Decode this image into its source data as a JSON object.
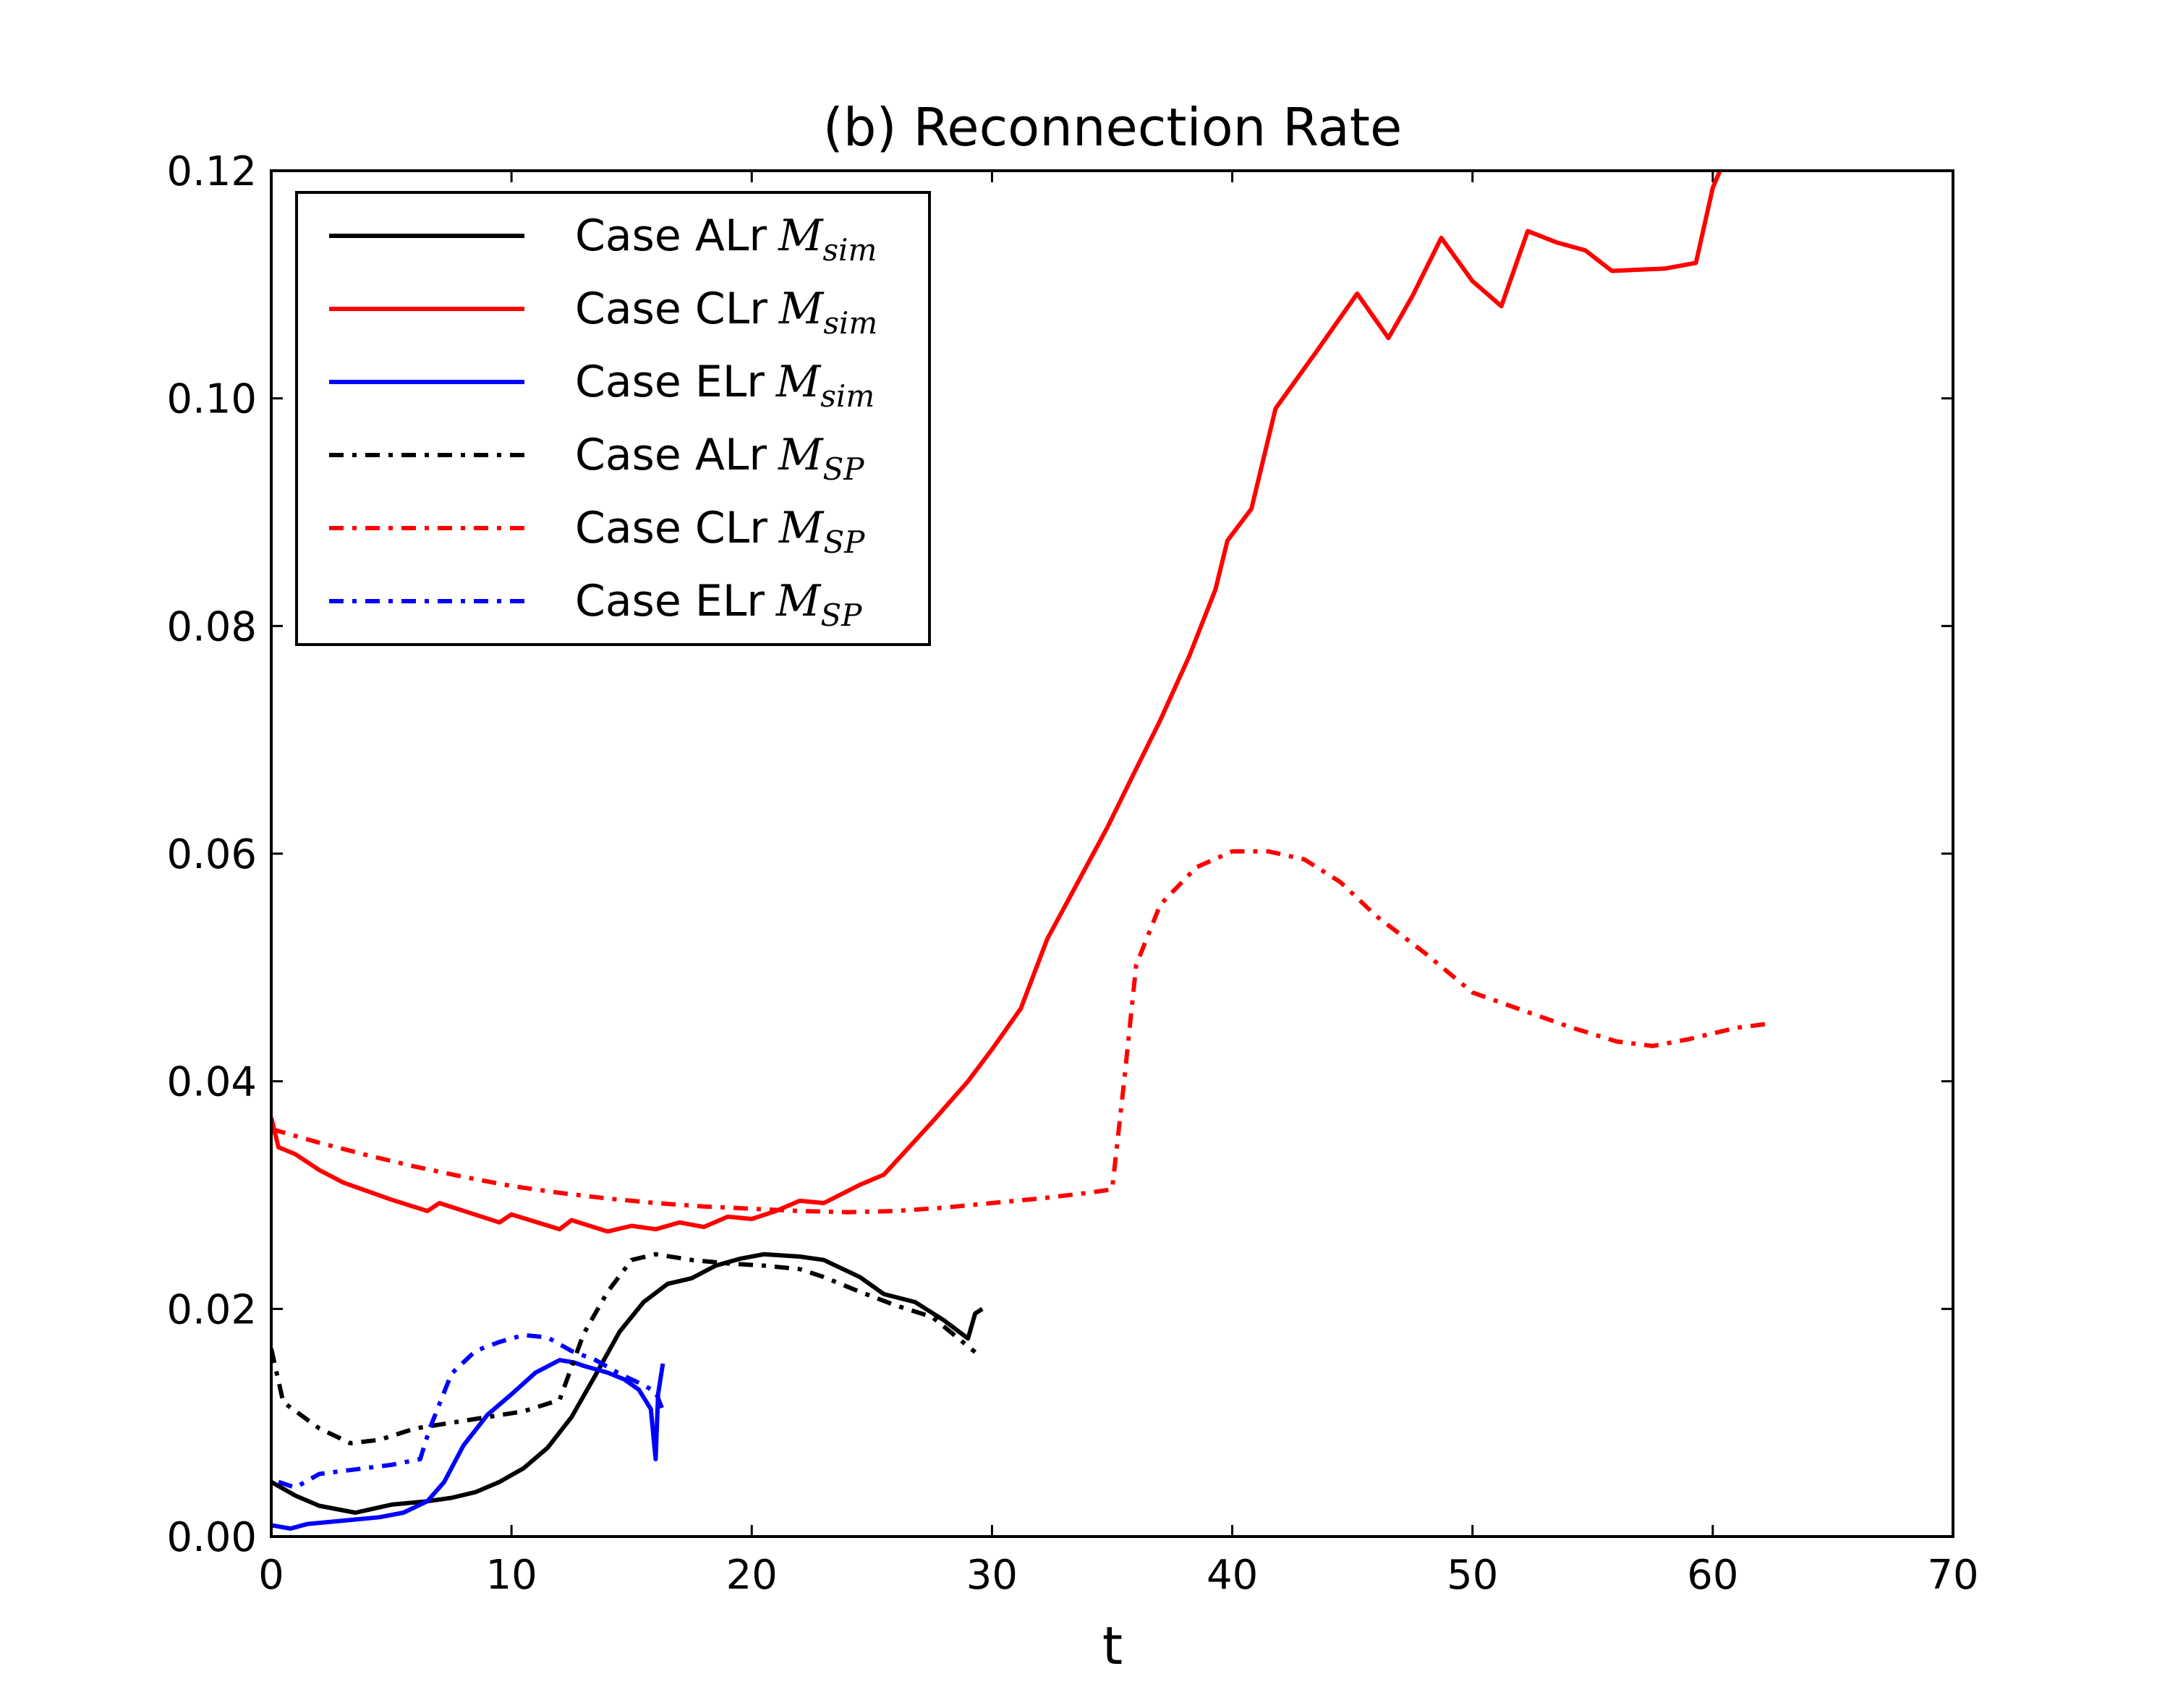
{
  "chart_data": {
    "type": "line",
    "title": "(b) Reconnection Rate",
    "xlabel": "t",
    "ylabel": "",
    "xlim": [
      0,
      70
    ],
    "ylim": [
      0,
      0.12
    ],
    "xticks": [
      "0",
      "10",
      "20",
      "30",
      "40",
      "50",
      "60",
      "70"
    ],
    "yticks": [
      "0.00",
      "0.02",
      "0.04",
      "0.06",
      "0.08",
      "0.10",
      "0.12"
    ],
    "legend_position": "top-left",
    "series": [
      {
        "name": "Case ALr M_sim",
        "label": "Case ALr",
        "math": "M",
        "sub": "sim",
        "color": "#000000",
        "style": "solid",
        "points": [
          [
            0,
            0.0048
          ],
          [
            0.5,
            0.0042
          ],
          [
            1,
            0.0036
          ],
          [
            2,
            0.0027
          ],
          [
            3.5,
            0.0021
          ],
          [
            5,
            0.0028
          ],
          [
            6.5,
            0.0031
          ],
          [
            7.5,
            0.0034
          ],
          [
            8.5,
            0.0039
          ],
          [
            9.5,
            0.0048
          ],
          [
            10.5,
            0.006
          ],
          [
            11.5,
            0.0078
          ],
          [
            12.5,
            0.0105
          ],
          [
            13.5,
            0.0142
          ],
          [
            14.5,
            0.018
          ],
          [
            15.5,
            0.0206
          ],
          [
            16.5,
            0.0222
          ],
          [
            17.5,
            0.0227
          ],
          [
            18.5,
            0.0238
          ],
          [
            19.5,
            0.0244
          ],
          [
            20.5,
            0.0248
          ],
          [
            22,
            0.0246
          ],
          [
            23,
            0.0243
          ],
          [
            24.5,
            0.0228
          ],
          [
            25.5,
            0.0213
          ],
          [
            26.8,
            0.0206
          ],
          [
            28,
            0.019
          ],
          [
            29,
            0.0174
          ],
          [
            29.3,
            0.0196
          ],
          [
            29.6,
            0.02
          ]
        ]
      },
      {
        "name": "Case CLr M_sim",
        "label": "Case CLr",
        "math": "M",
        "sub": "sim",
        "color": "#ff0000",
        "style": "solid",
        "points": [
          [
            0,
            0.0368
          ],
          [
            0.3,
            0.0342
          ],
          [
            1,
            0.0336
          ],
          [
            2,
            0.0322
          ],
          [
            3,
            0.0311
          ],
          [
            5,
            0.0296
          ],
          [
            6.5,
            0.0286
          ],
          [
            7,
            0.0293
          ],
          [
            9.5,
            0.0276
          ],
          [
            10,
            0.0283
          ],
          [
            12,
            0.027
          ],
          [
            12.5,
            0.0278
          ],
          [
            14,
            0.0268
          ],
          [
            15,
            0.0273
          ],
          [
            16,
            0.027
          ],
          [
            17,
            0.0276
          ],
          [
            18,
            0.0272
          ],
          [
            19,
            0.0281
          ],
          [
            20,
            0.0279
          ],
          [
            21,
            0.0286
          ],
          [
            22,
            0.0295
          ],
          [
            23,
            0.0293
          ],
          [
            24.5,
            0.0309
          ],
          [
            25.5,
            0.0318
          ],
          [
            26.5,
            0.0341
          ],
          [
            27.5,
            0.0364
          ],
          [
            29,
            0.04
          ],
          [
            30,
            0.0428
          ],
          [
            31.2,
            0.0464
          ],
          [
            32.3,
            0.0525
          ],
          [
            33.5,
            0.0572
          ],
          [
            34.8,
            0.0623
          ],
          [
            35.8,
            0.0666
          ],
          [
            37,
            0.0717
          ],
          [
            38.2,
            0.0773
          ],
          [
            39.3,
            0.0832
          ],
          [
            39.8,
            0.0875
          ],
          [
            40.8,
            0.0903
          ],
          [
            41.8,
            0.0991
          ],
          [
            43.5,
            0.1041
          ],
          [
            45.2,
            0.1092
          ],
          [
            46.5,
            0.1053
          ],
          [
            47.5,
            0.109
          ],
          [
            48.7,
            0.1141
          ],
          [
            50,
            0.1103
          ],
          [
            51.2,
            0.1081
          ],
          [
            52.3,
            0.1147
          ],
          [
            53.5,
            0.1137
          ],
          [
            54.7,
            0.113
          ],
          [
            55.8,
            0.1112
          ],
          [
            58,
            0.1114
          ],
          [
            59.3,
            0.1119
          ],
          [
            60,
            0.1185
          ],
          [
            60.5,
            0.121
          ]
        ]
      },
      {
        "name": "Case ELr M_sim",
        "label": "Case ELr",
        "math": "M",
        "sub": "sim",
        "color": "#0000ff",
        "style": "solid",
        "points": [
          [
            0,
            0.001
          ],
          [
            0.8,
            0.0007
          ],
          [
            1.5,
            0.0011
          ],
          [
            3,
            0.0014
          ],
          [
            4.5,
            0.0017
          ],
          [
            5.5,
            0.0021
          ],
          [
            6.5,
            0.0031
          ],
          [
            7.2,
            0.0048
          ],
          [
            8,
            0.008
          ],
          [
            9,
            0.0107
          ],
          [
            10,
            0.0125
          ],
          [
            11,
            0.0144
          ],
          [
            12,
            0.0155
          ],
          [
            12.6,
            0.0153
          ],
          [
            13,
            0.015
          ],
          [
            14,
            0.0144
          ],
          [
            14.7,
            0.0138
          ],
          [
            15.3,
            0.0129
          ],
          [
            15.8,
            0.0112
          ],
          [
            16,
            0.0068
          ],
          [
            16.1,
            0.0125
          ],
          [
            16.3,
            0.0152
          ]
        ]
      },
      {
        "name": "Case ALr M_SP",
        "label": "Case ALr",
        "math": "M",
        "sub": "SP",
        "color": "#000000",
        "style": "dashdot",
        "points": [
          [
            0,
            0.0165
          ],
          [
            0.5,
            0.0118
          ],
          [
            2,
            0.0095
          ],
          [
            3.3,
            0.0082
          ],
          [
            4.5,
            0.0085
          ],
          [
            6,
            0.0095
          ],
          [
            7.5,
            0.01
          ],
          [
            9,
            0.0105
          ],
          [
            10.5,
            0.011
          ],
          [
            12,
            0.012
          ],
          [
            13,
            0.0178
          ],
          [
            14,
            0.0215
          ],
          [
            15,
            0.0243
          ],
          [
            16,
            0.0248
          ],
          [
            17.5,
            0.0243
          ],
          [
            19,
            0.024
          ],
          [
            20.5,
            0.0238
          ],
          [
            22,
            0.0235
          ],
          [
            23,
            0.0228
          ],
          [
            24.5,
            0.0215
          ],
          [
            26,
            0.0203
          ],
          [
            27.5,
            0.0193
          ],
          [
            29.3,
            0.0162
          ]
        ]
      },
      {
        "name": "Case CLr M_SP",
        "label": "Case CLr",
        "math": "M",
        "sub": "SP",
        "color": "#ff0000",
        "style": "dashdot",
        "points": [
          [
            0,
            0.0358
          ],
          [
            2,
            0.0346
          ],
          [
            4,
            0.0335
          ],
          [
            6,
            0.0325
          ],
          [
            8,
            0.0316
          ],
          [
            10,
            0.0308
          ],
          [
            12,
            0.0302
          ],
          [
            14,
            0.0297
          ],
          [
            16,
            0.0293
          ],
          [
            18,
            0.029
          ],
          [
            20,
            0.0288
          ],
          [
            22,
            0.0286
          ],
          [
            24,
            0.0285
          ],
          [
            26,
            0.0286
          ],
          [
            28,
            0.0289
          ],
          [
            30,
            0.0293
          ],
          [
            32,
            0.0297
          ],
          [
            34,
            0.0302
          ],
          [
            35,
            0.0305
          ],
          [
            35.5,
            0.04
          ],
          [
            36,
            0.0502
          ],
          [
            37,
            0.0555
          ],
          [
            38.5,
            0.0588
          ],
          [
            40,
            0.0602
          ],
          [
            41.5,
            0.0602
          ],
          [
            43,
            0.0595
          ],
          [
            44.5,
            0.0575
          ],
          [
            46,
            0.0545
          ],
          [
            48,
            0.0513
          ],
          [
            50,
            0.0478
          ],
          [
            52,
            0.0463
          ],
          [
            54,
            0.0448
          ],
          [
            56,
            0.0435
          ],
          [
            57.5,
            0.0431
          ],
          [
            59,
            0.0437
          ],
          [
            61,
            0.0447
          ],
          [
            62.5,
            0.0451
          ]
        ]
      },
      {
        "name": "Case ELr M_SP",
        "label": "Case ELr",
        "math": "M",
        "sub": "SP",
        "color": "#0000ff",
        "style": "dashdot",
        "points": [
          [
            0.3,
            0.0048
          ],
          [
            1,
            0.0043
          ],
          [
            2,
            0.0055
          ],
          [
            3.5,
            0.0059
          ],
          [
            5,
            0.0063
          ],
          [
            6.2,
            0.0068
          ],
          [
            6.6,
            0.0095
          ],
          [
            7.5,
            0.0143
          ],
          [
            8.5,
            0.0163
          ],
          [
            9.5,
            0.0171
          ],
          [
            10.5,
            0.0177
          ],
          [
            11.5,
            0.0175
          ],
          [
            12.5,
            0.0163
          ],
          [
            13.5,
            0.0155
          ],
          [
            14.5,
            0.0143
          ],
          [
            15.5,
            0.0133
          ],
          [
            16,
            0.0127
          ],
          [
            16.3,
            0.0111
          ]
        ]
      }
    ]
  }
}
